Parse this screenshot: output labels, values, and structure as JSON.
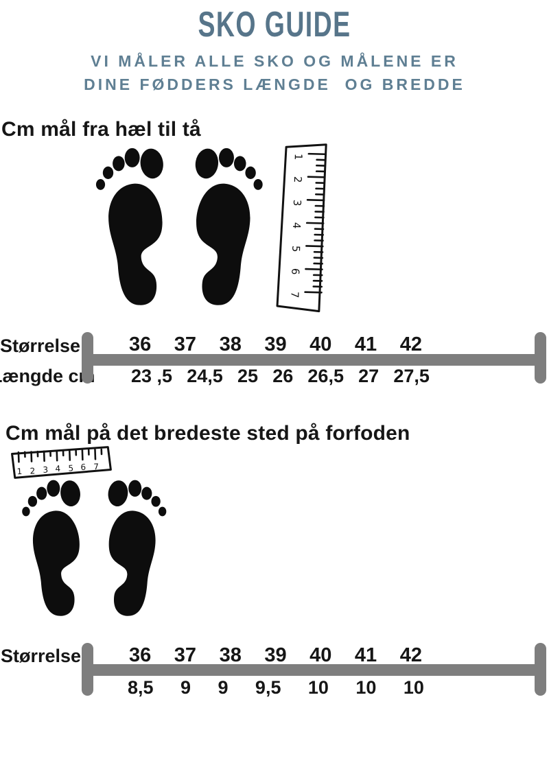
{
  "header": {
    "title": "SKO GUIDE",
    "subtitle_line1": "VI MÅLER ALLE SKO OG MÅLENE ER",
    "subtitle_line2": "DINE FØDDERS LÆNGDE  OG BREDDE"
  },
  "section_length": {
    "heading": "Cm mål fra hæl til tå",
    "chart": {
      "row1_label": "Størrelse",
      "row2_label": "Længde cm",
      "sizes": [
        "36",
        "37",
        "38",
        "39",
        "40",
        "41",
        "42"
      ],
      "values": [
        "23 ,5",
        "24,5",
        "25",
        "26",
        "26,5",
        "27",
        "27,5"
      ]
    }
  },
  "section_width": {
    "heading": "Cm mål på det bredeste sted på forfoden",
    "chart": {
      "row1_label": "Størrelse",
      "sizes": [
        "36",
        "37",
        "38",
        "39",
        "40",
        "41",
        "42"
      ],
      "values": [
        "8,5",
        "9",
        "9",
        "9,5",
        "10",
        "10",
        "10"
      ]
    }
  },
  "ruler": {
    "marks": [
      "1",
      "2",
      "3",
      "4",
      "5",
      "6",
      "7"
    ]
  },
  "icons": {
    "footprints": "footprints-silhouette",
    "ruler_vertical": "hand-drawn-ruler-vertical",
    "ruler_horizontal": "hand-drawn-ruler-horizontal"
  },
  "colors": {
    "accent": "#57758a",
    "accent_light": "#5f7f93",
    "bar_gray": "#7e7e7e",
    "ink": "#161616"
  }
}
